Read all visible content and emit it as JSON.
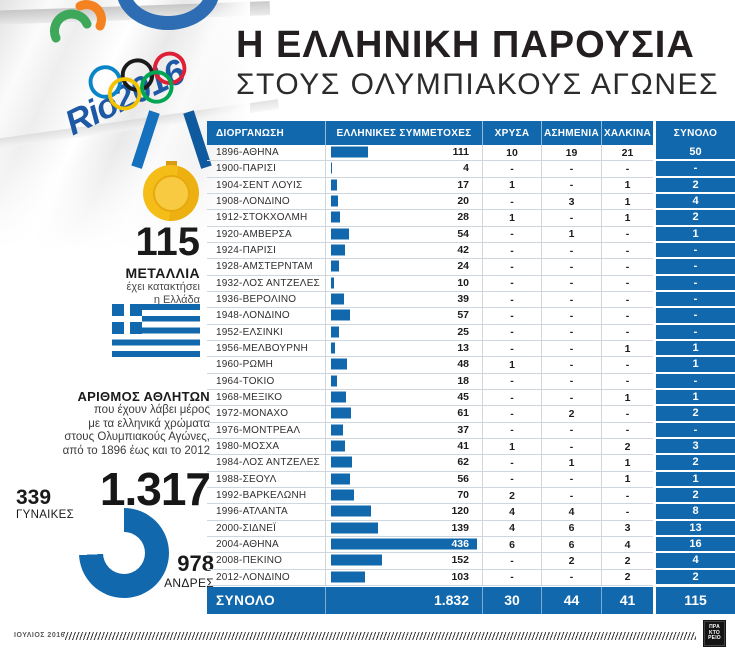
{
  "title": {
    "line1": "Η ΕΛΛΗΝΙΚΗ ΠΑΡΟΥΣΙΑ",
    "line2": "ΣΤΟΥΣ ΟΛΥΜΠΙΑΚΟΥΣ ΑΓΩΝΕΣ"
  },
  "branding": {
    "rio_text": "Rio2016"
  },
  "colors": {
    "blue": "#1268ad",
    "gold": "#f5bd18",
    "title_black": "#231f20"
  },
  "medals_summary": {
    "value": "115",
    "label": "ΜΕΤΑΛΛΙΑ",
    "sub1": "έχει κατακτήσει",
    "sub2": "η Ελλάδα"
  },
  "athletes_summary": {
    "heading": "ΑΡΙΘΜΟΣ ΑΘΛΗΤΩΝ",
    "desc_lines": [
      "που έχουν λάβει μέρος",
      "με τα ελληνικά χρώματα",
      "στους Ολυμπιακούς Αγώνες,",
      "από το 1896 έως και το 2012"
    ],
    "total": "1.317",
    "women_value": "339",
    "women_label": "ΓΥΝΑΙΚΕΣ",
    "men_value": "978",
    "men_label": "ΑΝΔΡΕΣ"
  },
  "footer": {
    "date": "ΙΟΥΛΙΟΣ 2016",
    "logo_lines": [
      "ΠΡΑ",
      "ΚΤΟ",
      "ΡΕΙΟ"
    ]
  },
  "chart_data": [
    {
      "type": "table",
      "title": "Η ΕΛΛΗΝΙΚΗ ΠΑΡΟΥΣΙΑ ΣΤΟΥΣ ΟΛΥΜΠΙΑΚΟΥΣ ΑΓΩΝΕΣ",
      "columns": [
        "ΔΙΟΡΓΑΝΩΣΗ",
        "ΕΛΛΗΝΙΚΕΣ ΣΥΜΜΕΤΟΧΕΣ",
        "ΧΡΥΣΑ",
        "ΑΣΗΜΕΝΙΑ",
        "ΧΑΛΚΙΝΑ",
        "ΣΥΝΟΛΟ"
      ],
      "bar_column": "ΕΛΛΗΝΙΚΕΣ ΣΥΜΜΕΤΟΧΕΣ",
      "bar_max": 436,
      "rows": [
        [
          "1896-ΑΘΗΝΑ",
          111,
          10,
          19,
          21,
          50
        ],
        [
          "1900-ΠΑΡΙΣΙ",
          4,
          0,
          0,
          0,
          0
        ],
        [
          "1904-ΣΕΝΤ ΛΟΥΙΣ",
          17,
          1,
          0,
          1,
          2
        ],
        [
          "1908-ΛΟΝΔΙΝΟ",
          20,
          0,
          3,
          1,
          4
        ],
        [
          "1912-ΣΤΟΚΧΟΛΜΗ",
          28,
          1,
          0,
          1,
          2
        ],
        [
          "1920-ΑΜΒΕΡΣΑ",
          54,
          0,
          1,
          0,
          1
        ],
        [
          "1924-ΠΑΡΙΣΙ",
          42,
          0,
          0,
          0,
          0
        ],
        [
          "1928-ΑΜΣΤΕΡΝΤΑΜ",
          24,
          0,
          0,
          0,
          0
        ],
        [
          "1932-ΛΟΣ ΑΝΤΖΕΛΕΣ",
          10,
          0,
          0,
          0,
          0
        ],
        [
          "1936-ΒΕΡΟΛΙΝΟ",
          39,
          0,
          0,
          0,
          0
        ],
        [
          "1948-ΛΟΝΔΙΝΟ",
          57,
          0,
          0,
          0,
          0
        ],
        [
          "1952-ΕΛΣΙΝΚΙ",
          25,
          0,
          0,
          0,
          0
        ],
        [
          "1956-ΜΕΛΒΟΥΡΝΗ",
          13,
          0,
          0,
          1,
          1
        ],
        [
          "1960-ΡΩΜΗ",
          48,
          1,
          0,
          0,
          1
        ],
        [
          "1964-ΤΟΚΙΟ",
          18,
          0,
          0,
          0,
          0
        ],
        [
          "1968-ΜΕΞΙΚΟ",
          45,
          0,
          0,
          1,
          1
        ],
        [
          "1972-ΜΟΝΑΧΟ",
          61,
          0,
          2,
          0,
          2
        ],
        [
          "1976-ΜΟΝΤΡΕΑΛ",
          37,
          0,
          0,
          0,
          0
        ],
        [
          "1980-ΜΟΣΧΑ",
          41,
          1,
          0,
          2,
          3
        ],
        [
          "1984-ΛΟΣ ΑΝΤΖΕΛΕΣ",
          62,
          0,
          1,
          1,
          2
        ],
        [
          "1988-ΣΕΟΥΛ",
          56,
          0,
          0,
          1,
          1
        ],
        [
          "1992-ΒΑΡΚΕΛΩΝΗ",
          70,
          2,
          0,
          0,
          2
        ],
        [
          "1996-ΑΤΛΑΝΤΑ",
          120,
          4,
          4,
          0,
          8
        ],
        [
          "2000-ΣΙΔΝΕΪ",
          139,
          4,
          6,
          3,
          13
        ],
        [
          "2004-ΑΘΗΝΑ",
          436,
          6,
          6,
          4,
          16
        ],
        [
          "2008-ΠΕΚΙΝΟ",
          152,
          0,
          2,
          2,
          4
        ],
        [
          "2012-ΛΟΝΔΙΝΟ",
          103,
          0,
          0,
          2,
          2
        ]
      ],
      "total_row": [
        "ΣΥΝΟΛΟ",
        "1.832",
        30,
        44,
        41,
        115
      ]
    },
    {
      "type": "pie",
      "donut": true,
      "title": "1.317 ΑΘΛΗΤΕΣ",
      "slices": [
        {
          "label": "ΓΥΝΑΙΚΕΣ",
          "value": 339,
          "color": "#ffffff"
        },
        {
          "label": "ΑΝΔΡΕΣ",
          "value": 978,
          "color": "#1268ad"
        }
      ]
    }
  ]
}
